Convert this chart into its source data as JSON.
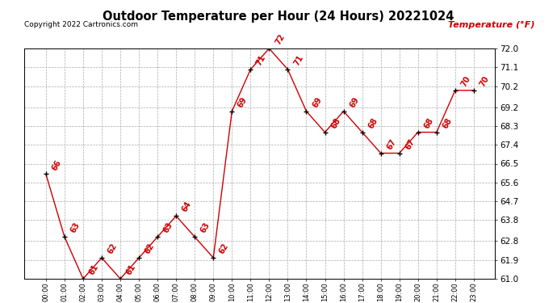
{
  "title": "Outdoor Temperature per Hour (24 Hours) 20221024",
  "copyright": "Copyright 2022 Cartronics.com",
  "legend_label": "Temperature (°F)",
  "hours": [
    "00:00",
    "01:00",
    "02:00",
    "03:00",
    "04:00",
    "05:00",
    "06:00",
    "07:00",
    "08:00",
    "09:00",
    "10:00",
    "11:00",
    "12:00",
    "13:00",
    "14:00",
    "15:00",
    "16:00",
    "17:00",
    "18:00",
    "19:00",
    "20:00",
    "21:00",
    "22:00",
    "23:00"
  ],
  "temps": [
    66,
    63,
    61,
    62,
    61,
    62,
    63,
    64,
    63,
    62,
    69,
    71,
    72,
    71,
    69,
    68,
    69,
    68,
    67,
    67,
    68,
    68,
    70,
    70
  ],
  "line_color": "#cc0000",
  "marker_color": "#000000",
  "grid_color": "#aaaaaa",
  "bg_color": "#ffffff",
  "title_color": "#000000",
  "copyright_color": "#000000",
  "legend_color": "#cc0000",
  "label_color": "#cc0000",
  "ylim_min": 61.0,
  "ylim_max": 72.0,
  "yticks": [
    61.0,
    61.9,
    62.8,
    63.8,
    64.7,
    65.6,
    66.5,
    67.4,
    68.3,
    69.2,
    70.2,
    71.1,
    72.0
  ]
}
